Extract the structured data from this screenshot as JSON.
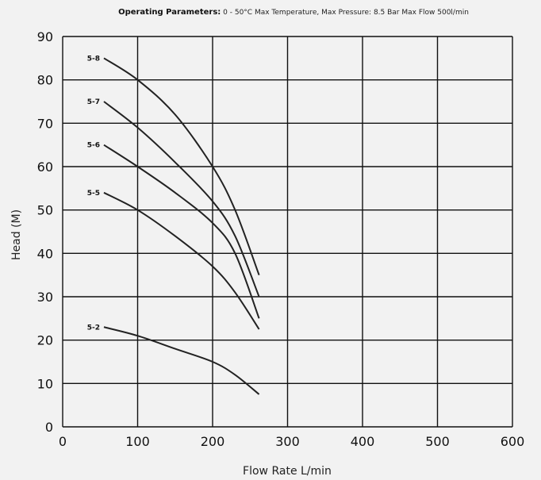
{
  "chart_data": {
    "type": "line",
    "title_bold": "Operating Parameters:",
    "title_rest": " 0 - 50°C Max Temperature, Max Pressure: 8.5 Bar Max Flow 500l/min",
    "xlabel": "Flow Rate L/min",
    "ylabel": "Head (M)",
    "xlim": [
      0,
      600
    ],
    "ylim": [
      0,
      90
    ],
    "xticks": [
      0,
      100,
      200,
      300,
      400,
      500,
      600
    ],
    "yticks": [
      0,
      10,
      20,
      30,
      40,
      50,
      60,
      70,
      80,
      90
    ],
    "grid": true,
    "series": [
      {
        "name": "5-8",
        "points": [
          [
            55,
            85
          ],
          [
            100,
            80
          ],
          [
            150,
            72
          ],
          [
            200,
            60
          ],
          [
            230,
            50
          ],
          [
            262,
            35
          ]
        ]
      },
      {
        "name": "5-7",
        "points": [
          [
            55,
            75
          ],
          [
            100,
            69
          ],
          [
            150,
            61
          ],
          [
            200,
            52
          ],
          [
            230,
            44
          ],
          [
            262,
            30
          ]
        ]
      },
      {
        "name": "5-6",
        "points": [
          [
            55,
            65
          ],
          [
            100,
            60
          ],
          [
            150,
            54
          ],
          [
            200,
            47
          ],
          [
            230,
            40
          ],
          [
            262,
            25
          ]
        ]
      },
      {
        "name": "5-5",
        "points": [
          [
            55,
            54
          ],
          [
            100,
            50
          ],
          [
            150,
            44
          ],
          [
            200,
            37
          ],
          [
            230,
            31
          ],
          [
            262,
            22.5
          ]
        ]
      },
      {
        "name": "5-2",
        "points": [
          [
            55,
            23
          ],
          [
            100,
            21
          ],
          [
            150,
            18
          ],
          [
            200,
            15
          ],
          [
            230,
            12
          ],
          [
            262,
            7.5
          ]
        ]
      }
    ]
  }
}
